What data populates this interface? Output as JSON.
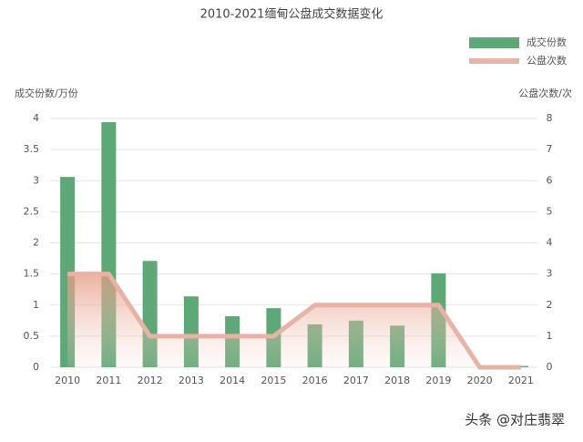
{
  "chart_data": {
    "type": "bar_line",
    "title": "2010-2021缅甸公盘成交数据变化",
    "y_label": "成交份数/万份",
    "y2_label": "公盘次数/次",
    "categories": [
      "2010",
      "2011",
      "2012",
      "2013",
      "2014",
      "2015",
      "2016",
      "2017",
      "2018",
      "2019",
      "2020",
      "2021"
    ],
    "series": [
      {
        "name": "成交份数",
        "type": "bar",
        "color": "#5ea877",
        "values": [
          3.06,
          3.94,
          1.71,
          1.14,
          0.82,
          0.95,
          0.69,
          0.75,
          0.67,
          1.51,
          0,
          0.02
        ]
      },
      {
        "name": "公盘次数",
        "type": "line",
        "axis": "y2",
        "color": "#e6b3a6",
        "values": [
          3,
          3,
          1,
          1,
          1,
          1,
          2,
          2,
          2,
          2,
          0,
          0
        ]
      }
    ],
    "ylim": [
      0,
      4
    ],
    "yticks": [
      0,
      0.5,
      1,
      1.5,
      2,
      2.5,
      3,
      3.5,
      4
    ],
    "y2lim": [
      0,
      8
    ],
    "y2ticks": [
      0,
      1,
      2,
      3,
      4,
      5,
      6,
      7,
      8
    ],
    "grid": true,
    "legend": "top-right",
    "watermark": "头条 @对庄翡翠"
  }
}
